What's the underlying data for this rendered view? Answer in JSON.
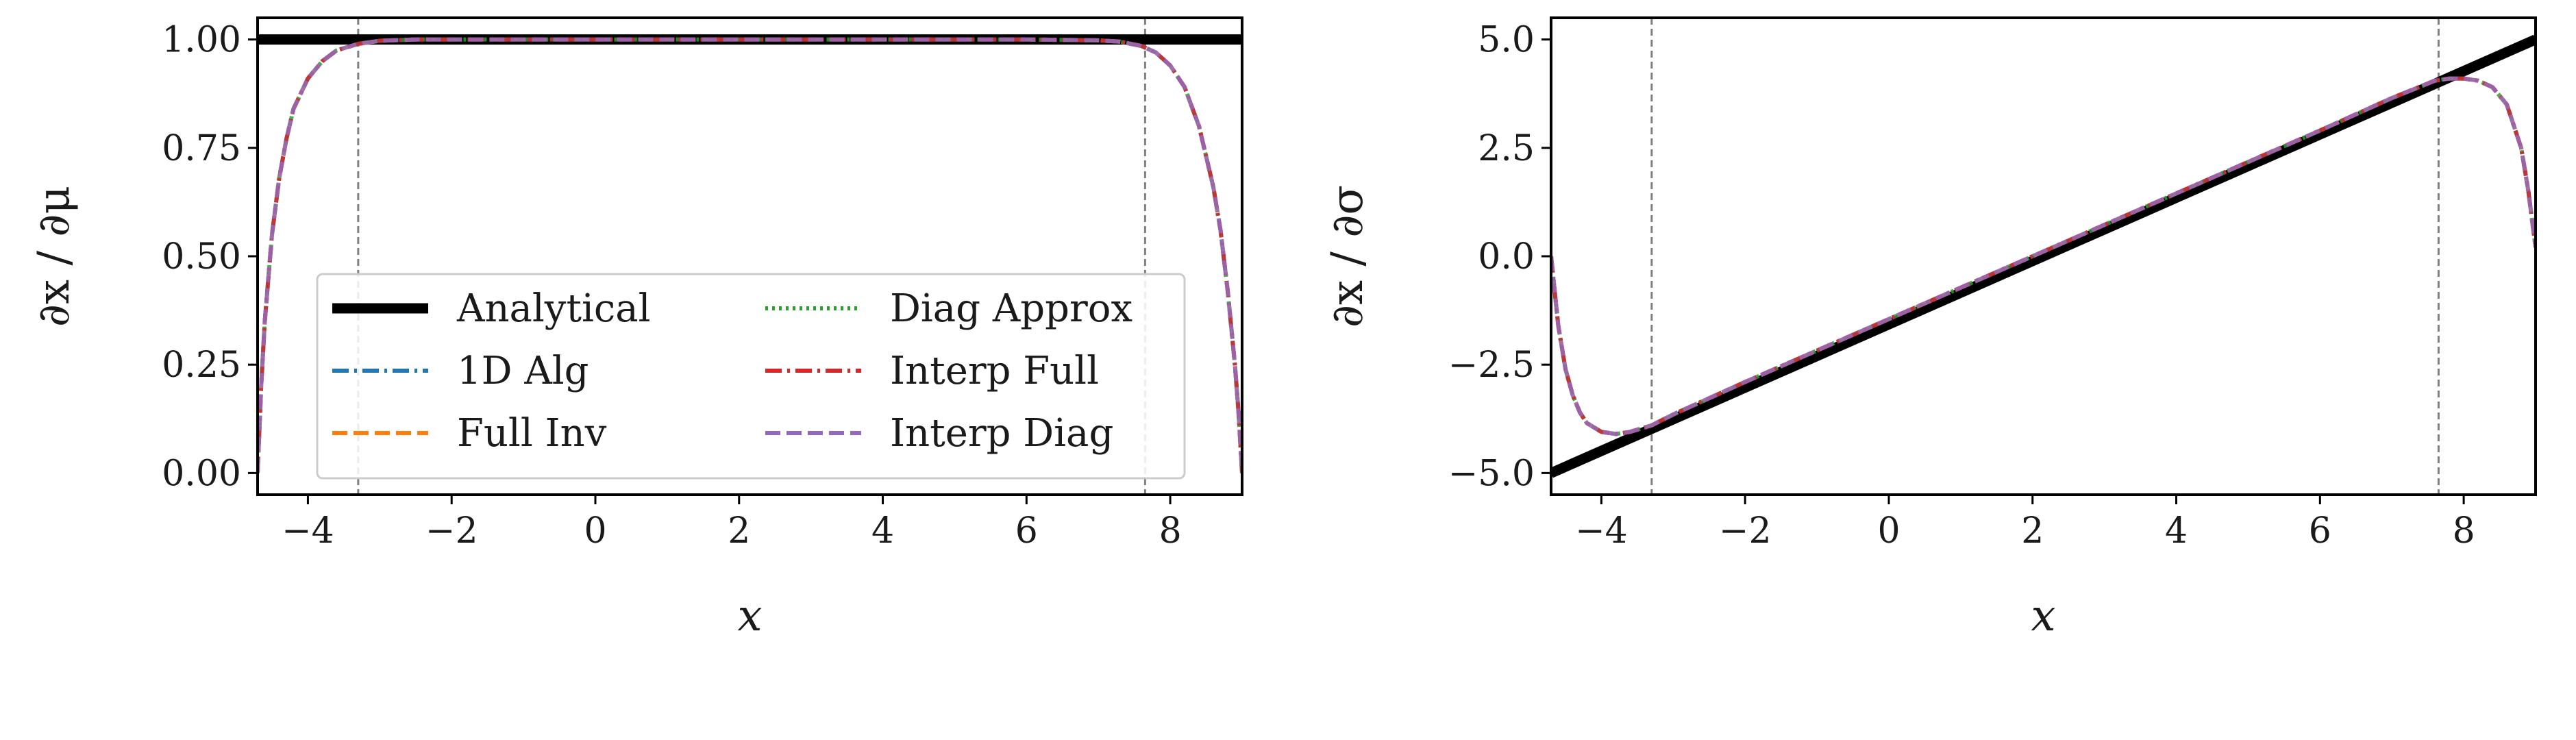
{
  "chart_data": [
    {
      "type": "line",
      "title": "",
      "xlabel": "x",
      "ylabel": "∂x / ∂μ",
      "xlim": [
        -4.7,
        9.0
      ],
      "ylim": [
        -0.05,
        1.05
      ],
      "xticks": [
        -4,
        -2,
        0,
        2,
        4,
        6,
        8
      ],
      "xtick_labels": [
        "−4",
        "−2",
        "0",
        "2",
        "4",
        "6",
        "8"
      ],
      "yticks": [
        0.0,
        0.25,
        0.5,
        0.75,
        1.0
      ],
      "ytick_labels": [
        "0.00",
        "0.25",
        "0.50",
        "0.75",
        "1.00"
      ],
      "grid": false,
      "legend_position": "lower-center",
      "legend_columns": 2,
      "vlines": [
        -3.3,
        7.65
      ],
      "series": [
        {
          "name": "Analytical",
          "color": "#000000",
          "style": "solid",
          "x": [
            -4.7,
            9.0
          ],
          "y": [
            1.0,
            1.0
          ]
        },
        {
          "name": "1D Alg",
          "color": "#1f77b4",
          "style": "dashdot",
          "x": [
            -4.7,
            -4.65,
            -4.6,
            -4.5,
            -4.4,
            -4.3,
            -4.2,
            -4.0,
            -3.8,
            -3.6,
            -3.3,
            -3.0,
            -2.5,
            -2.0,
            0.0,
            4.0,
            6.0,
            7.0,
            7.3,
            7.6,
            7.8,
            8.0,
            8.2,
            8.4,
            8.6,
            8.7,
            8.8,
            8.9,
            8.95,
            9.0
          ],
          "y": [
            0.0,
            0.2,
            0.35,
            0.55,
            0.68,
            0.77,
            0.84,
            0.91,
            0.95,
            0.975,
            0.99,
            0.997,
            1.0,
            1.0,
            1.0,
            1.0,
            1.0,
            0.998,
            0.995,
            0.985,
            0.97,
            0.94,
            0.89,
            0.8,
            0.66,
            0.56,
            0.42,
            0.25,
            0.14,
            0.0
          ]
        },
        {
          "name": "Full Inv",
          "color": "#ff7f0e",
          "style": "dashed",
          "x": [
            -4.7,
            -4.65,
            -4.6,
            -4.5,
            -4.4,
            -4.3,
            -4.2,
            -4.0,
            -3.8,
            -3.6,
            -3.3,
            -3.0,
            -2.5,
            -2.0,
            0.0,
            4.0,
            6.0,
            7.0,
            7.3,
            7.6,
            7.8,
            8.0,
            8.2,
            8.4,
            8.6,
            8.7,
            8.8,
            8.9,
            8.95,
            9.0
          ],
          "y": [
            0.0,
            0.2,
            0.35,
            0.55,
            0.68,
            0.77,
            0.84,
            0.91,
            0.95,
            0.975,
            0.99,
            0.997,
            1.0,
            1.0,
            1.0,
            1.0,
            1.0,
            0.998,
            0.995,
            0.985,
            0.97,
            0.94,
            0.89,
            0.8,
            0.66,
            0.56,
            0.42,
            0.25,
            0.14,
            0.0
          ]
        },
        {
          "name": "Diag Approx",
          "color": "#2ca02c",
          "style": "dotted",
          "x": [
            -4.7,
            -4.65,
            -4.6,
            -4.5,
            -4.4,
            -4.3,
            -4.2,
            -4.0,
            -3.8,
            -3.6,
            -3.3,
            -3.0,
            -2.5,
            -2.0,
            0.0,
            4.0,
            6.0,
            7.0,
            7.3,
            7.6,
            7.8,
            8.0,
            8.2,
            8.4,
            8.6,
            8.7,
            8.8,
            8.9,
            8.95,
            9.0
          ],
          "y": [
            0.0,
            0.2,
            0.35,
            0.55,
            0.68,
            0.77,
            0.84,
            0.91,
            0.95,
            0.975,
            0.99,
            0.997,
            1.0,
            1.0,
            1.0,
            1.0,
            1.0,
            0.998,
            0.995,
            0.985,
            0.97,
            0.94,
            0.89,
            0.8,
            0.66,
            0.56,
            0.42,
            0.25,
            0.14,
            0.0
          ]
        },
        {
          "name": "Interp Full",
          "color": "#d62728",
          "style": "dashdot",
          "x": [
            -4.7,
            -4.65,
            -4.6,
            -4.5,
            -4.4,
            -4.3,
            -4.2,
            -4.0,
            -3.8,
            -3.6,
            -3.3,
            -3.0,
            -2.5,
            -2.0,
            0.0,
            4.0,
            6.0,
            7.0,
            7.3,
            7.6,
            7.8,
            8.0,
            8.2,
            8.4,
            8.6,
            8.7,
            8.8,
            8.9,
            8.95,
            9.0
          ],
          "y": [
            0.0,
            0.2,
            0.35,
            0.55,
            0.68,
            0.77,
            0.84,
            0.91,
            0.95,
            0.975,
            0.99,
            0.997,
            1.0,
            1.0,
            1.0,
            1.0,
            1.0,
            0.998,
            0.995,
            0.985,
            0.97,
            0.94,
            0.89,
            0.8,
            0.66,
            0.56,
            0.42,
            0.25,
            0.14,
            0.0
          ]
        },
        {
          "name": "Interp Diag",
          "color": "#9467bd",
          "style": "dashed",
          "x": [
            -4.7,
            -4.65,
            -4.6,
            -4.5,
            -4.4,
            -4.3,
            -4.2,
            -4.0,
            -3.8,
            -3.6,
            -3.3,
            -3.0,
            -2.5,
            -2.0,
            0.0,
            4.0,
            6.0,
            7.0,
            7.3,
            7.6,
            7.8,
            8.0,
            8.2,
            8.4,
            8.6,
            8.7,
            8.8,
            8.9,
            8.95,
            9.0
          ],
          "y": [
            0.0,
            0.2,
            0.35,
            0.55,
            0.68,
            0.77,
            0.84,
            0.91,
            0.95,
            0.975,
            0.99,
            0.997,
            1.0,
            1.0,
            1.0,
            1.0,
            1.0,
            0.998,
            0.995,
            0.985,
            0.97,
            0.94,
            0.89,
            0.8,
            0.66,
            0.56,
            0.42,
            0.25,
            0.14,
            0.0
          ]
        }
      ]
    },
    {
      "type": "line",
      "title": "",
      "xlabel": "x",
      "ylabel": "∂x / ∂σ",
      "xlim": [
        -4.7,
        9.0
      ],
      "ylim": [
        -5.5,
        5.5
      ],
      "xticks": [
        -4,
        -2,
        0,
        2,
        4,
        6,
        8
      ],
      "xtick_labels": [
        "−4",
        "−2",
        "0",
        "2",
        "4",
        "6",
        "8"
      ],
      "yticks": [
        -5.0,
        -2.5,
        0.0,
        2.5,
        5.0
      ],
      "ytick_labels": [
        "−5.0",
        "−2.5",
        "0.0",
        "2.5",
        "5.0"
      ],
      "grid": false,
      "vlines": [
        -3.3,
        7.65
      ],
      "series": [
        {
          "name": "Analytical",
          "color": "#000000",
          "style": "solid",
          "x": [
            -4.7,
            9.0
          ],
          "y": [
            -5.0,
            5.0
          ]
        },
        {
          "name": "1D Alg",
          "color": "#1f77b4",
          "style": "dashdot",
          "x": [
            -4.7,
            -4.6,
            -4.5,
            -4.4,
            -4.3,
            -4.2,
            -4.0,
            -3.8,
            -3.6,
            -3.3,
            -3.0,
            -2.0,
            0.0,
            2.0,
            4.0,
            6.0,
            7.0,
            7.6,
            7.8,
            8.0,
            8.2,
            8.4,
            8.6,
            8.8,
            8.9,
            9.0
          ],
          "y": [
            0.0,
            -1.6,
            -2.6,
            -3.2,
            -3.6,
            -3.85,
            -4.05,
            -4.1,
            -4.05,
            -3.9,
            -3.65,
            -2.9,
            -1.45,
            0.0,
            1.45,
            2.9,
            3.65,
            4.05,
            4.1,
            4.1,
            4.05,
            3.9,
            3.5,
            2.5,
            1.5,
            0.2
          ]
        },
        {
          "name": "Full Inv",
          "color": "#ff7f0e",
          "style": "dashed",
          "x": [
            -4.7,
            -4.6,
            -4.5,
            -4.4,
            -4.3,
            -4.2,
            -4.0,
            -3.8,
            -3.6,
            -3.3,
            -3.0,
            -2.0,
            0.0,
            2.0,
            4.0,
            6.0,
            7.0,
            7.6,
            7.8,
            8.0,
            8.2,
            8.4,
            8.6,
            8.8,
            8.9,
            9.0
          ],
          "y": [
            0.0,
            -1.6,
            -2.6,
            -3.2,
            -3.6,
            -3.85,
            -4.05,
            -4.1,
            -4.05,
            -3.9,
            -3.65,
            -2.9,
            -1.45,
            0.0,
            1.45,
            2.9,
            3.65,
            4.05,
            4.1,
            4.1,
            4.05,
            3.9,
            3.5,
            2.5,
            1.5,
            0.2
          ]
        },
        {
          "name": "Diag Approx",
          "color": "#2ca02c",
          "style": "dotted",
          "x": [
            -4.7,
            -4.6,
            -4.5,
            -4.4,
            -4.3,
            -4.2,
            -4.0,
            -3.8,
            -3.6,
            -3.3,
            -3.0,
            -2.0,
            0.0,
            2.0,
            4.0,
            6.0,
            7.0,
            7.6,
            7.8,
            8.0,
            8.2,
            8.4,
            8.6,
            8.8,
            8.9,
            9.0
          ],
          "y": [
            0.0,
            -1.6,
            -2.6,
            -3.2,
            -3.6,
            -3.85,
            -4.05,
            -4.1,
            -4.05,
            -3.9,
            -3.65,
            -2.9,
            -1.45,
            0.0,
            1.45,
            2.9,
            3.65,
            4.05,
            4.1,
            4.1,
            4.05,
            3.9,
            3.5,
            2.5,
            1.5,
            0.2
          ]
        },
        {
          "name": "Interp Full",
          "color": "#d62728",
          "style": "dashdot",
          "x": [
            -4.7,
            -4.6,
            -4.5,
            -4.4,
            -4.3,
            -4.2,
            -4.0,
            -3.8,
            -3.6,
            -3.3,
            -3.0,
            -2.0,
            0.0,
            2.0,
            4.0,
            6.0,
            7.0,
            7.6,
            7.8,
            8.0,
            8.2,
            8.4,
            8.6,
            8.8,
            8.9,
            9.0
          ],
          "y": [
            0.0,
            -1.6,
            -2.6,
            -3.2,
            -3.6,
            -3.85,
            -4.05,
            -4.1,
            -4.05,
            -3.9,
            -3.65,
            -2.9,
            -1.45,
            0.0,
            1.45,
            2.9,
            3.65,
            4.05,
            4.1,
            4.1,
            4.05,
            3.9,
            3.5,
            2.5,
            1.5,
            0.2
          ]
        },
        {
          "name": "Interp Diag",
          "color": "#9467bd",
          "style": "dashed",
          "x": [
            -4.7,
            -4.6,
            -4.5,
            -4.4,
            -4.3,
            -4.2,
            -4.0,
            -3.8,
            -3.6,
            -3.3,
            -3.0,
            -2.0,
            0.0,
            2.0,
            4.0,
            6.0,
            7.0,
            7.6,
            7.8,
            8.0,
            8.2,
            8.4,
            8.6,
            8.8,
            8.9,
            9.0
          ],
          "y": [
            0.0,
            -1.6,
            -2.6,
            -3.2,
            -3.6,
            -3.85,
            -4.05,
            -4.1,
            -4.05,
            -3.9,
            -3.65,
            -2.9,
            -1.45,
            0.0,
            1.45,
            2.9,
            3.65,
            4.05,
            4.1,
            4.1,
            4.05,
            3.9,
            3.5,
            2.5,
            1.5,
            0.2
          ]
        }
      ]
    }
  ]
}
